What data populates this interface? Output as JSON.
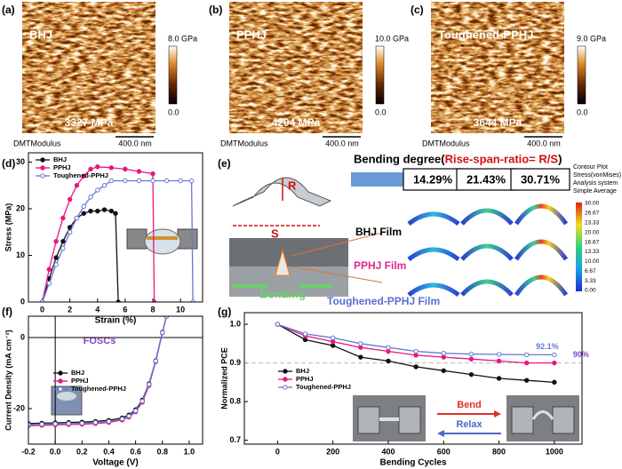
{
  "afm": [
    {
      "label": "(a)",
      "name": "BHJ",
      "modulus": "3327 MPa",
      "channel": "DMTModulus",
      "scale": "400.0 nm",
      "cbar_max": "8.0 GPa",
      "cbar_min": "0.0"
    },
    {
      "label": "(b)",
      "name": "PPHJ",
      "modulus": "4204 MPa",
      "channel": "DMTModulus",
      "scale": "400.0 nm",
      "cbar_max": "10.0 GPa",
      "cbar_min": "0.0"
    },
    {
      "label": "(c)",
      "name": "Toughened-PPHJ",
      "modulus": "3644 MPa",
      "channel": "DMTModulus",
      "scale": "400.0 nm",
      "cbar_max": "9.0 GPa",
      "cbar_min": "0.0"
    }
  ],
  "bending": {
    "label": "(e)",
    "title": "Bending degree(",
    "title_ratio": "Rise-span-ratio= R/S",
    "title_end": ")",
    "degrees": [
      "14.29%",
      "21.43%",
      "30.71%"
    ],
    "rise": "R",
    "span": "S",
    "action": "Bending",
    "films": [
      "BHJ Film",
      "PPHJ Film",
      "Toughened-PPHJ Film"
    ],
    "legend_title": [
      "Contour Plot",
      "Stress(vonMises)",
      "Analysis system",
      "Simple Average"
    ],
    "legend_ticks": [
      "30.00",
      "26.67",
      "23.33",
      "20.00",
      "16.67",
      "13.33",
      "10.00",
      "6.67",
      "3.33",
      "0.00"
    ]
  },
  "chart_data": [
    {
      "label": "(d)",
      "type": "line",
      "xlabel": "Strain (%)",
      "ylabel": "Stress (MPa)",
      "xlim": [
        -1,
        11.6
      ],
      "xticks": [
        0,
        2,
        4,
        6,
        8,
        10
      ],
      "ylim": [
        0,
        32
      ],
      "yticks": [
        0,
        10,
        20,
        30
      ],
      "legend": "upper left",
      "markers": true,
      "series": [
        {
          "name": "BHJ",
          "color": "#111111",
          "x": [
            0,
            0.5,
            1,
            1.5,
            2,
            2.5,
            3,
            3.5,
            4,
            4.5,
            5,
            5.3,
            5.5
          ],
          "values": [
            0,
            5,
            9.5,
            13,
            16,
            18,
            19,
            19.5,
            19.5,
            19.8,
            19.5,
            19,
            0
          ]
        },
        {
          "name": "PPHJ",
          "color": "#e8177d",
          "x": [
            0,
            0.5,
            1,
            1.5,
            2,
            2.5,
            3,
            3.5,
            4,
            5,
            6,
            7,
            8,
            8.1
          ],
          "values": [
            0,
            7,
            13,
            18,
            22,
            25,
            27,
            28.5,
            29,
            28.8,
            28.5,
            28,
            27.5,
            0
          ]
        },
        {
          "name": "Toughened-PPHJ",
          "color": "#6477d4",
          "x": [
            0,
            0.5,
            1,
            1.5,
            2,
            2.5,
            3,
            3.5,
            4,
            4.5,
            5,
            6,
            7,
            8,
            9,
            10,
            10.8,
            10.9
          ],
          "values": [
            0,
            4,
            8,
            11.5,
            15,
            18,
            20.5,
            22.5,
            24,
            25,
            26,
            26,
            26,
            26,
            26,
            26,
            26,
            0
          ]
        }
      ]
    },
    {
      "label": "(f)",
      "type": "line",
      "xlabel": "Voltage (V)",
      "ylabel": "Current Density (mA cm⁻²)",
      "annotations": [
        "FOSCs"
      ],
      "xlim": [
        -0.2,
        1.1
      ],
      "xticks": [
        -0.2,
        {
          "value": 0,
          "label": "0.0"
        },
        0.2,
        0.4,
        0.6,
        0.8,
        {
          "value": 1,
          "label": "1.0"
        }
      ],
      "ylim": [
        -30,
        6
      ],
      "yticks": [
        0,
        -20
      ],
      "zero_lines": true,
      "legend": "center left",
      "markers": true,
      "x": [
        -0.2,
        -0.1,
        0,
        0.1,
        0.2,
        0.3,
        0.4,
        0.5,
        0.55,
        0.6,
        0.65,
        0.7,
        0.75,
        0.8,
        0.83
      ],
      "series": [
        {
          "name": "BHJ",
          "color": "#111111",
          "values": [
            -24.2,
            -24.1,
            -24.0,
            -23.9,
            -23.8,
            -23.6,
            -23.3,
            -22.6,
            -21.8,
            -20.3,
            -17.6,
            -13,
            -6.5,
            1.5,
            6
          ]
        },
        {
          "name": "PPHJ",
          "color": "#e8177d",
          "values": [
            -24.8,
            -24.7,
            -24.6,
            -24.5,
            -24.4,
            -24.2,
            -23.9,
            -23.2,
            -22.4,
            -20.9,
            -18.2,
            -13.5,
            -6.8,
            1.3,
            6
          ]
        },
        {
          "name": "Toughened-PPHJ",
          "color": "#6477d4",
          "values": [
            -24.5,
            -24.4,
            -24.3,
            -24.2,
            -24.1,
            -23.9,
            -23.6,
            -22.9,
            -22.1,
            -20.6,
            -17.9,
            -13.2,
            -6.6,
            1.4,
            6
          ]
        }
      ]
    },
    {
      "label": "(g)",
      "type": "line",
      "xlabel": "Bending Cycles",
      "ylabel": "Normalized PCE",
      "annotations": [
        "Bend",
        "Relax"
      ],
      "xlim": [
        -120,
        1100
      ],
      "xticks": [
        0,
        200,
        400,
        600,
        800,
        1000
      ],
      "ylim": [
        0.69,
        1.03
      ],
      "yticks": [
        0.7,
        0.8,
        0.9,
        {
          "value": 1,
          "label": "1.0"
        }
      ],
      "hline": 0.9,
      "legend": "center left",
      "markers": true,
      "x": [
        0,
        100,
        200,
        300,
        400,
        500,
        600,
        700,
        800,
        900,
        1000
      ],
      "series": [
        {
          "name": "BHJ",
          "color": "#111111",
          "values": [
            1,
            0.96,
            0.945,
            0.915,
            0.905,
            0.89,
            0.88,
            0.87,
            0.86,
            0.855,
            0.85
          ]
        },
        {
          "name": "PPHJ",
          "color": "#e8177d",
          "values": [
            1,
            0.97,
            0.955,
            0.94,
            0.93,
            0.92,
            0.915,
            0.91,
            0.905,
            0.9,
            0.9
          ],
          "value_labels": [
            null,
            null,
            null,
            null,
            null,
            null,
            null,
            null,
            null,
            null,
            "90%"
          ]
        },
        {
          "name": "Toughened-PPHJ",
          "color": "#6477d4",
          "values": [
            1,
            0.975,
            0.965,
            0.95,
            0.94,
            0.93,
            0.925,
            0.923,
            0.922,
            0.921,
            0.921
          ],
          "value_labels": [
            null,
            null,
            null,
            null,
            null,
            null,
            null,
            null,
            null,
            null,
            "92.1%"
          ]
        }
      ]
    }
  ]
}
